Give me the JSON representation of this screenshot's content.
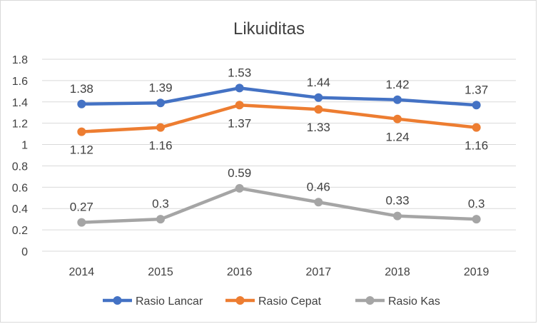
{
  "chart_data": {
    "type": "line",
    "title": "Likuiditas",
    "xlabel": "",
    "ylabel": "",
    "categories": [
      "2014",
      "2015",
      "2016",
      "2017",
      "2018",
      "2019"
    ],
    "ylim": [
      0,
      1.8
    ],
    "yticks": [
      "0",
      "0.2",
      "0.4",
      "0.6",
      "0.8",
      "1",
      "1.2",
      "1.4",
      "1.6",
      "1.8"
    ],
    "grid": true,
    "legend_position": "bottom",
    "series": [
      {
        "name": "Rasio Lancar",
        "color": "#4472c4",
        "values": [
          1.38,
          1.39,
          1.53,
          1.44,
          1.42,
          1.37
        ],
        "labels": [
          "1.38",
          "1.39",
          "1.53",
          "1.44",
          "1.42",
          "1.37"
        ],
        "label_position": "above"
      },
      {
        "name": "Rasio Cepat",
        "color": "#ed7d31",
        "values": [
          1.12,
          1.16,
          1.37,
          1.33,
          1.24,
          1.16
        ],
        "labels": [
          "1.12",
          "1.16",
          "1.37",
          "1.33",
          "1.24",
          "1.16"
        ],
        "label_position": "below"
      },
      {
        "name": "Rasio Kas",
        "color": "#a5a5a5",
        "values": [
          0.27,
          0.3,
          0.59,
          0.46,
          0.33,
          0.3
        ],
        "labels": [
          "0.27",
          "0.3",
          "0.59",
          "0.46",
          "0.33",
          "0.3"
        ],
        "label_position": "above"
      }
    ]
  }
}
